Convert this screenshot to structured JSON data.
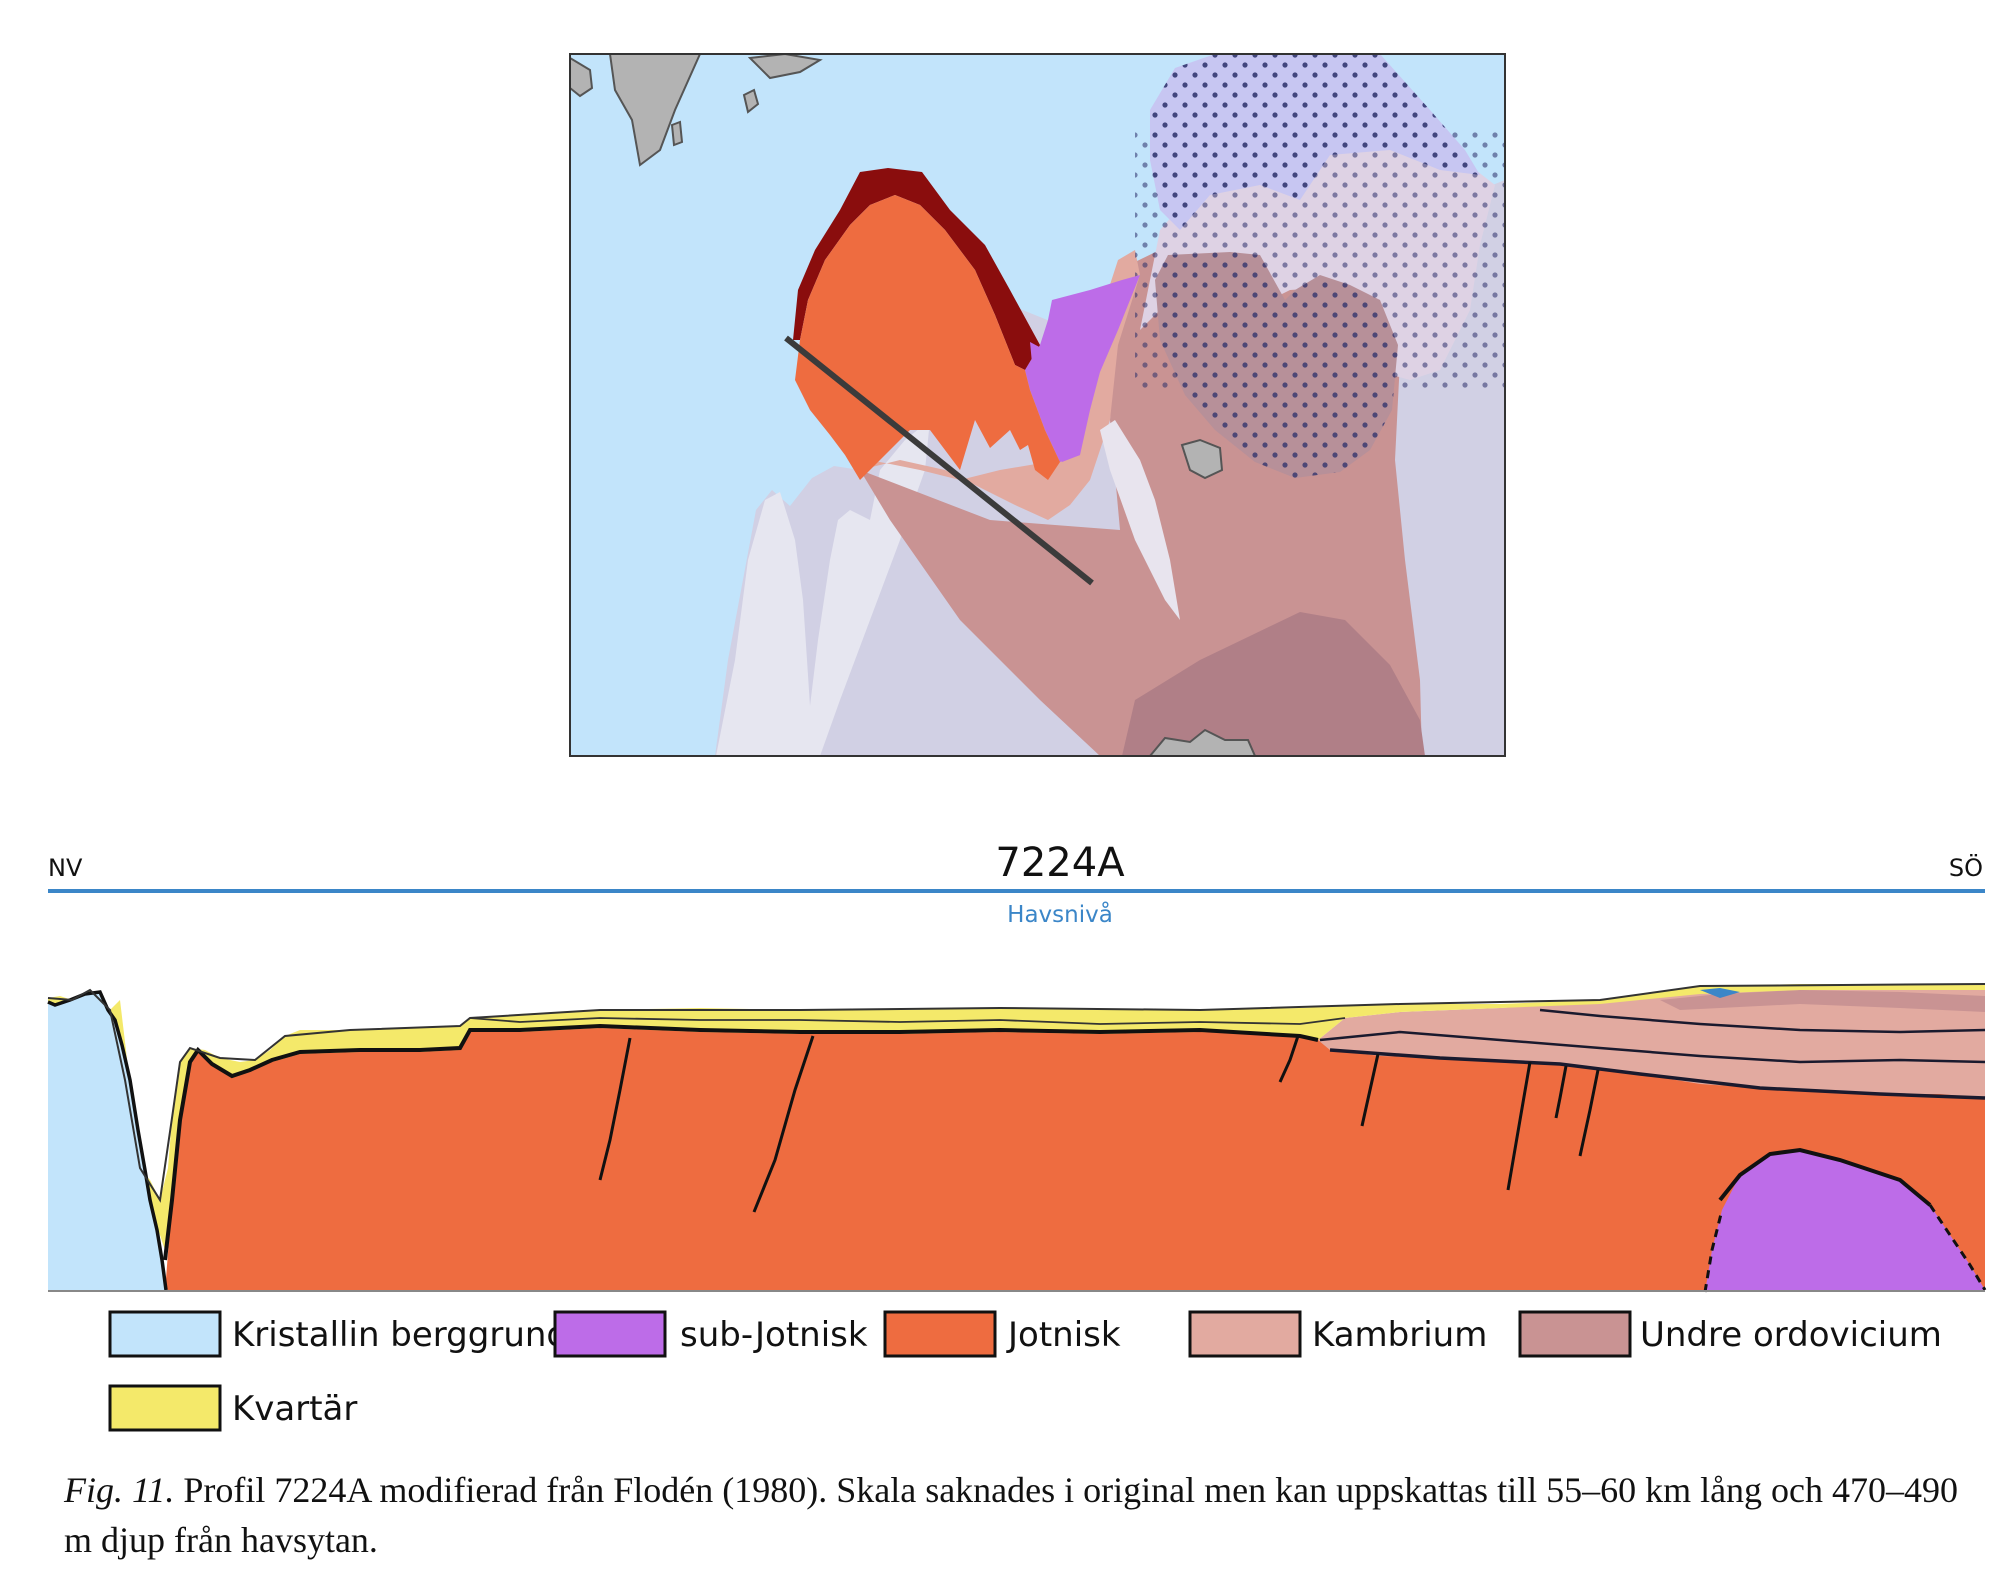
{
  "profile": {
    "title": "7224A",
    "nw_label": "NV",
    "se_label": "SÖ",
    "sea_level_label": "Havsnivå"
  },
  "legend": [
    {
      "label": "Kristallin berggrund",
      "color": "#c2e4fb"
    },
    {
      "label": "sub-Jotnisk",
      "color": "#bd6ce8"
    },
    {
      "label": "Jotnisk",
      "color": "#ee6c40"
    },
    {
      "label": "Kambrium",
      "color": "#e2aaa0"
    },
    {
      "label": "Undre ordovicium",
      "color": "#c99393"
    },
    {
      "label": "Kvartär",
      "color": "#f4e96a"
    }
  ],
  "colors": {
    "crystalline": "#c2e4fb",
    "sub_jotnian": "#bd6ce8",
    "jotnian": "#ee6c40",
    "jotnian_rim": "#8a0d0d",
    "cambrian": "#e2aaa0",
    "lower_ordovician": "#c99393",
    "quaternary": "#f4e96a",
    "sea_line": "#3b86c8",
    "island": "#b3b3b3"
  },
  "caption": {
    "label": "Fig. 11.",
    "text": "Profil 7224A modifierad från Flodén (1980). Skala saknades i original men kan uppskattas till 55–60 km lång och 470–490 m djup från havsytan."
  }
}
